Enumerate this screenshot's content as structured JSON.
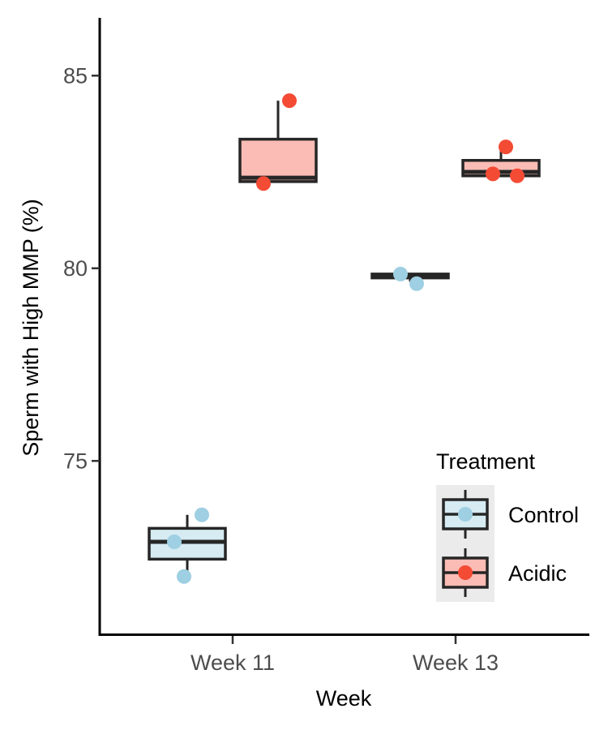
{
  "chart_data": {
    "type": "box",
    "xlabel": "Week",
    "ylabel": "Sperm with High MMP (%)",
    "categories": [
      "Week 11",
      "Week 13"
    ],
    "ylim": [
      70.5,
      86.5
    ],
    "yticks": [
      75,
      80,
      85
    ],
    "grid": false,
    "legend": {
      "title": "Treatment",
      "placement": "bottom-right",
      "entries": [
        "Control",
        "Acidic"
      ]
    },
    "series": [
      {
        "name": "Control",
        "box_fill": "#d6ebf2",
        "point_color": "#9ecfe2",
        "boxes": [
          {
            "category": "Week 11",
            "lower_whisker": 72.0,
            "q1": 72.45,
            "median": 72.9,
            "q3": 73.25,
            "upper_whisker": 73.6
          },
          {
            "category": "Week 13",
            "lower_whisker": 79.65,
            "q1": 79.75,
            "median": 79.8,
            "q3": 79.85,
            "upper_whisker": 79.85
          }
        ],
        "points": [
          {
            "category": "Week 11",
            "value": 72.9
          },
          {
            "category": "Week 11",
            "value": 73.6
          },
          {
            "category": "Week 11",
            "value": 72.0
          },
          {
            "category": "Week 13",
            "value": 79.85
          },
          {
            "category": "Week 13",
            "value": 79.6
          }
        ]
      },
      {
        "name": "Acidic",
        "box_fill": "#fbbcb5",
        "point_color": "#f44b35",
        "boxes": [
          {
            "category": "Week 11",
            "lower_whisker": 82.25,
            "q1": 82.25,
            "median": 82.35,
            "q3": 83.35,
            "upper_whisker": 84.35
          },
          {
            "category": "Week 13",
            "lower_whisker": 82.4,
            "q1": 82.4,
            "median": 82.5,
            "q3": 82.8,
            "upper_whisker": 83.15
          }
        ],
        "points": [
          {
            "category": "Week 11",
            "value": 84.35
          },
          {
            "category": "Week 11",
            "value": 82.2
          },
          {
            "category": "Week 13",
            "value": 83.15
          },
          {
            "category": "Week 13",
            "value": 82.4
          },
          {
            "category": "Week 13",
            "value": 82.45
          }
        ]
      }
    ]
  }
}
